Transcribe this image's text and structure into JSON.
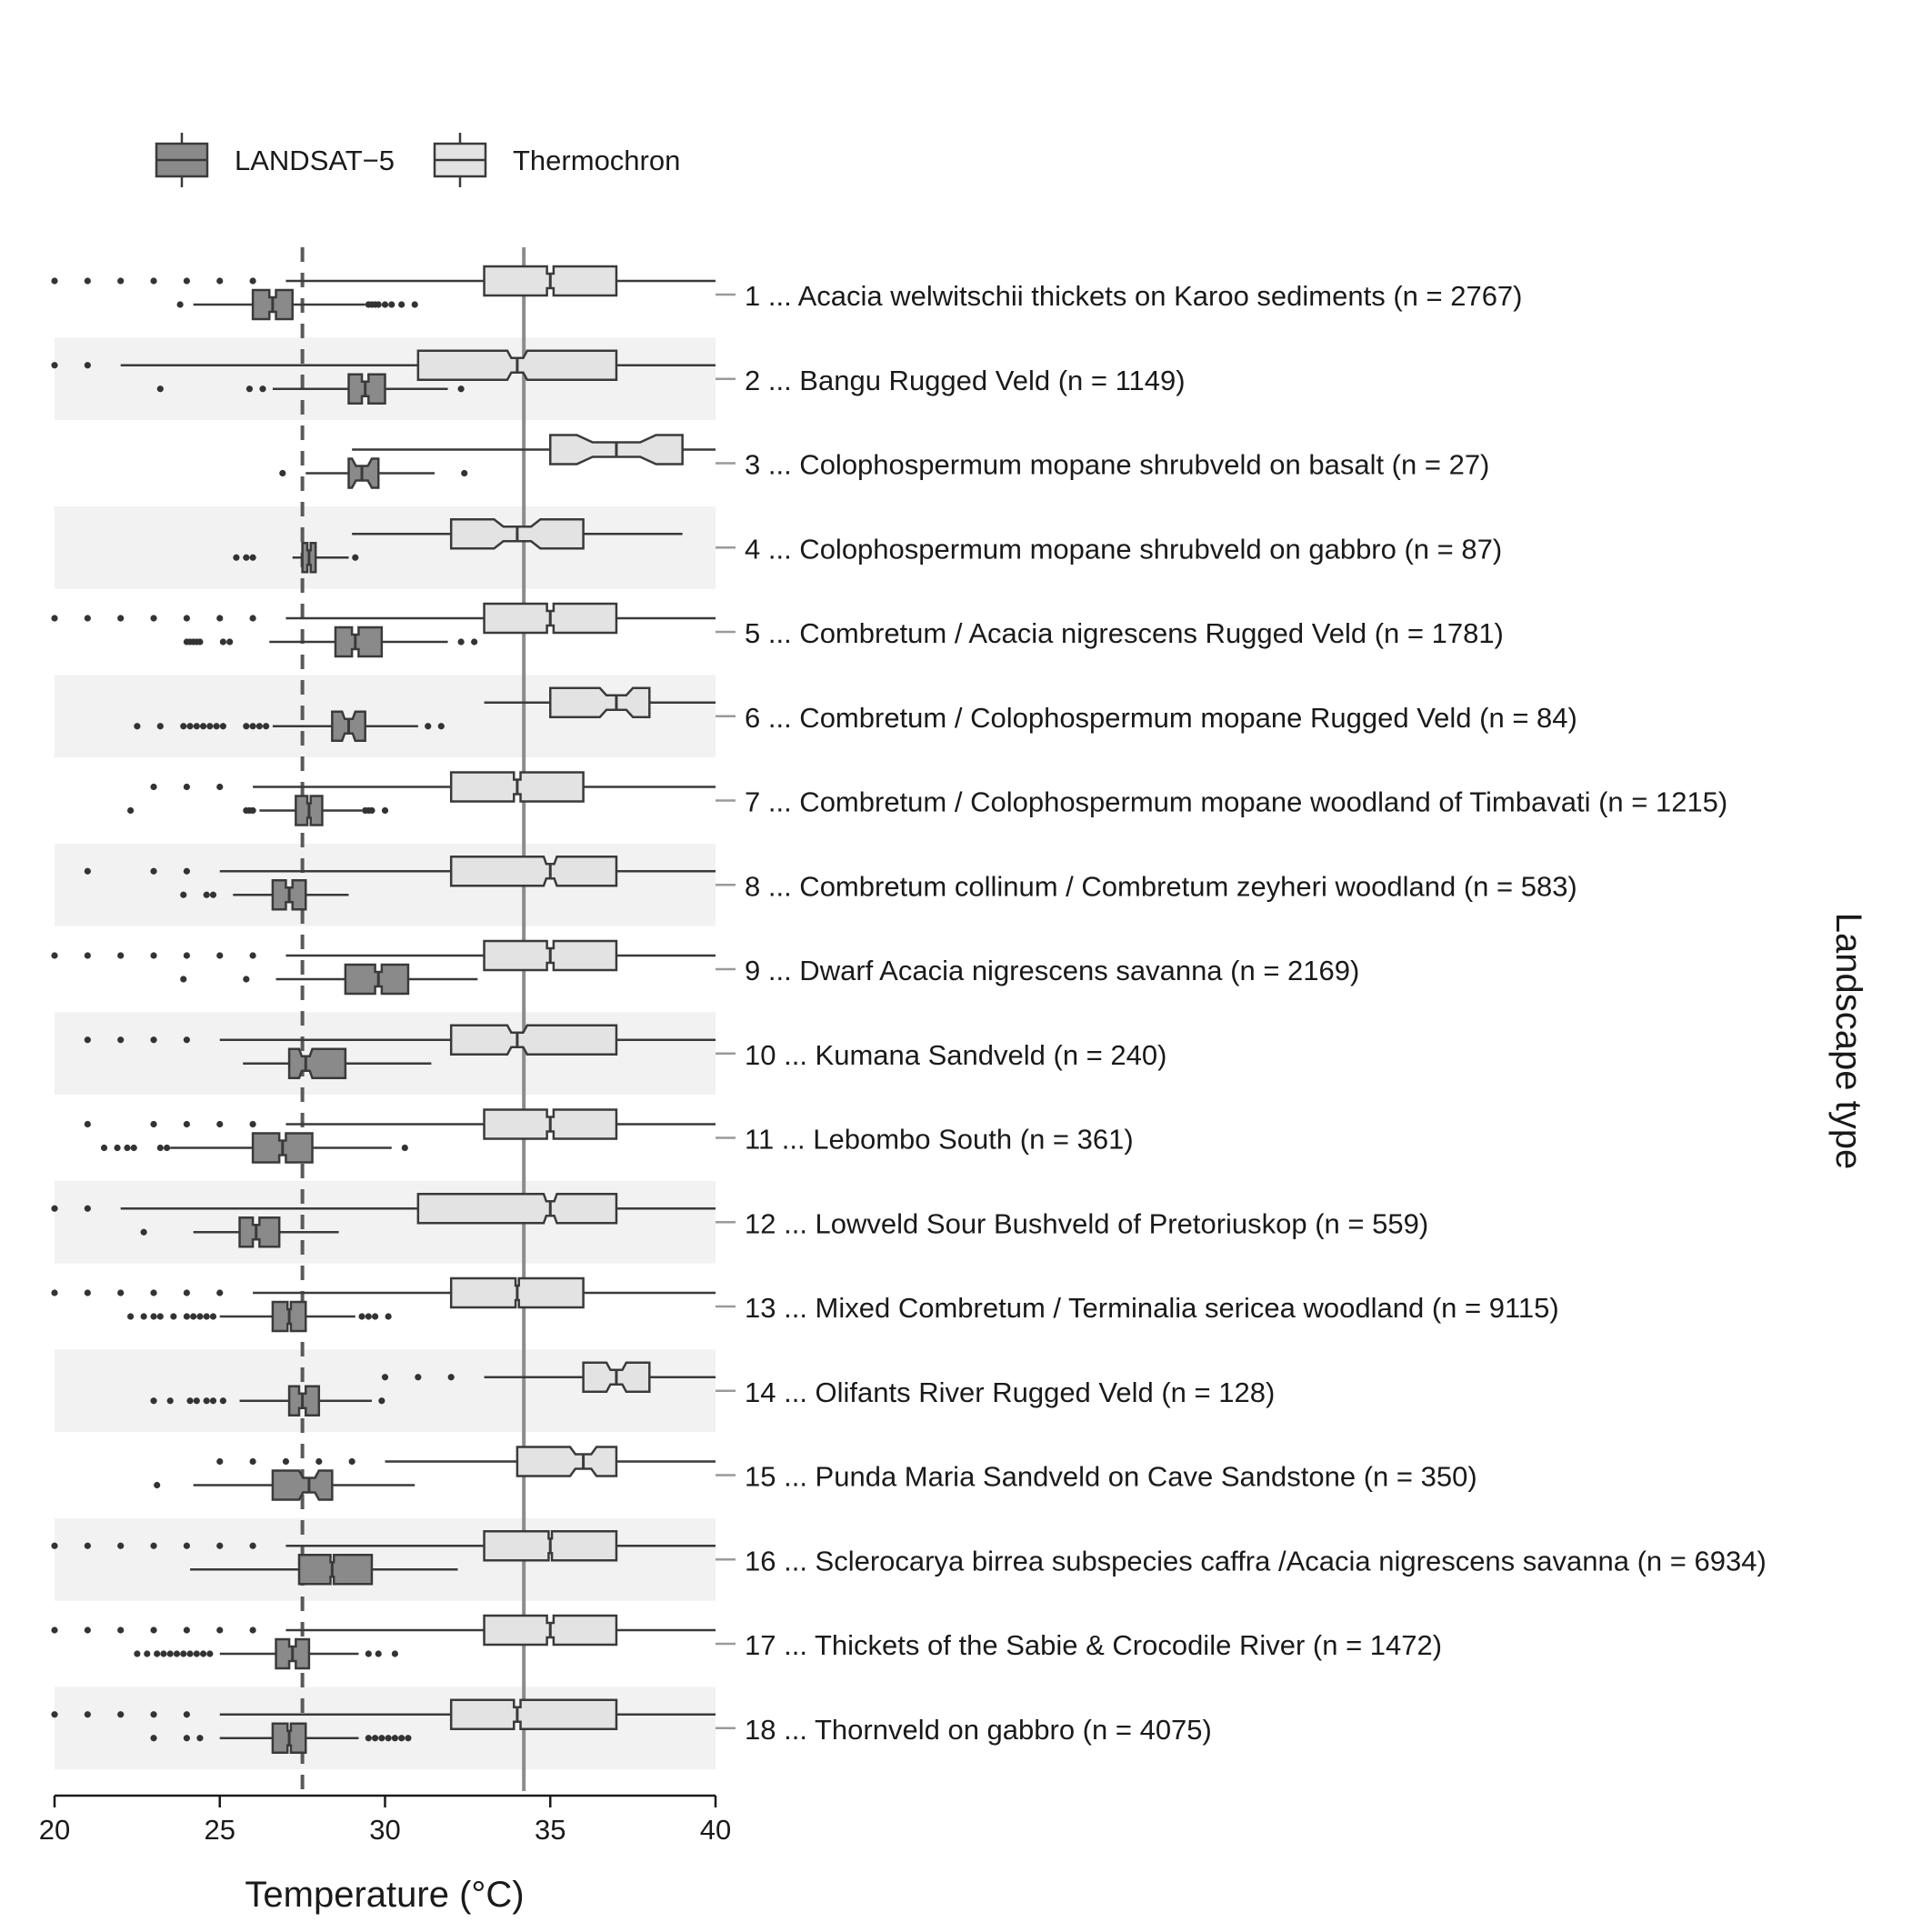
{
  "chart_data": {
    "type": "boxplot",
    "orientation": "horizontal",
    "xlabel": "Temperature (°C)",
    "ylabel": "Landscape type",
    "xlim": [
      20,
      40
    ],
    "xticks": [
      20,
      25,
      30,
      35,
      40
    ],
    "legend": {
      "position": "top-left",
      "entries": [
        {
          "name": "LANDSAT−5",
          "color": "#8a8a8a"
        },
        {
          "name": "Thermochron",
          "color": "#e3e3e3"
        }
      ]
    },
    "reference_lines": [
      {
        "value": 27.5,
        "style": "dashed",
        "color": "#5a5a5a"
      },
      {
        "value": 34.2,
        "style": "solid",
        "color": "#8c8c8c"
      }
    ],
    "colors": {
      "landsat": "#8a8a8a",
      "thermochron": "#e3e3e3",
      "band": "#f2f2f2",
      "stroke": "#3a3a3a"
    },
    "series": [
      {
        "name": "LANDSAT−5",
        "key": "landsat"
      },
      {
        "name": "Thermochron",
        "key": "thermochron"
      }
    ],
    "categories": [
      {
        "label": "1 ... Acacia welwitschii thickets on Karoo sediments (n = 2767)",
        "thermochron": {
          "whislo": 27,
          "q1": 33,
          "med": 35,
          "q3": 37,
          "whishi": 40,
          "notch": [
            34.9,
            35.1
          ],
          "fliers": [
            20,
            21,
            22,
            23,
            24,
            25,
            26
          ]
        },
        "landsat": {
          "whislo": 24.2,
          "q1": 26,
          "med": 26.6,
          "q3": 27.2,
          "whishi": 29.4,
          "notch": [
            26.5,
            26.7
          ],
          "fliers": [
            23.8,
            29.5,
            29.6,
            29.7,
            29.8,
            30,
            30.2,
            30.5,
            30.9
          ]
        }
      },
      {
        "label": "2 ... Bangu Rugged Veld (n = 1149)",
        "thermochron": {
          "whislo": 22,
          "q1": 31,
          "med": 34,
          "q3": 37,
          "whishi": 40,
          "notch": [
            33.7,
            34.3
          ],
          "fliers": [
            20,
            21
          ]
        },
        "landsat": {
          "whislo": 26.6,
          "q1": 28.9,
          "med": 29.4,
          "q3": 30,
          "whishi": 31.9,
          "notch": [
            29.3,
            29.5
          ],
          "fliers": [
            23.2,
            25.9,
            26.3,
            32.3
          ]
        }
      },
      {
        "label": "3 ... Colophospermum mopane shrubveld on basalt (n = 27)",
        "thermochron": {
          "whislo": 29,
          "q1": 35,
          "med": 37,
          "q3": 39,
          "whishi": 40,
          "notch": [
            35.8,
            38.2
          ],
          "fliers": []
        },
        "landsat": {
          "whislo": 27.6,
          "q1": 28.9,
          "med": 29.3,
          "q3": 29.8,
          "whishi": 31.5,
          "notch": [
            29.0,
            29.6
          ],
          "fliers": [
            26.9,
            32.4
          ]
        }
      },
      {
        "label": "4 ... Colophospermum mopane shrubveld on gabbro (n = 87)",
        "thermochron": {
          "whislo": 29,
          "q1": 32,
          "med": 34,
          "q3": 36,
          "whishi": 39,
          "notch": [
            33.3,
            34.7
          ],
          "fliers": []
        },
        "landsat": {
          "whislo": 27.2,
          "q1": 27.5,
          "med": 27.7,
          "q3": 27.9,
          "whishi": 28.9,
          "notch": [
            27.65,
            27.75
          ],
          "fliers": [
            25.5,
            25.8,
            26.0,
            29.1
          ]
        }
      },
      {
        "label": "5 ... Combretum / Acacia nigrescens Rugged Veld (n = 1781)",
        "thermochron": {
          "whislo": 27,
          "q1": 33,
          "med": 35,
          "q3": 37,
          "whishi": 40,
          "notch": [
            34.9,
            35.1
          ],
          "fliers": [
            20,
            21,
            22,
            23,
            24,
            25,
            26
          ]
        },
        "landsat": {
          "whislo": 26.5,
          "q1": 28.5,
          "med": 29.1,
          "q3": 29.9,
          "whishi": 31.9,
          "notch": [
            29.0,
            29.2
          ],
          "fliers": [
            24,
            24.1,
            24.2,
            24.3,
            24.4,
            25.1,
            25.3,
            32.3,
            32.7
          ]
        }
      },
      {
        "label": "6 ... Combretum / Colophospermum mopane Rugged Veld (n = 84)",
        "thermochron": {
          "whislo": 33,
          "q1": 35,
          "med": 37,
          "q3": 38,
          "whishi": 40,
          "notch": [
            36.5,
            37.5
          ],
          "fliers": []
        },
        "landsat": {
          "whislo": 26.6,
          "q1": 28.4,
          "med": 28.9,
          "q3": 29.4,
          "whishi": 31,
          "notch": [
            28.7,
            29.1
          ],
          "fliers": [
            22.5,
            23.2,
            23.9,
            24.1,
            24.3,
            24.5,
            24.7,
            24.9,
            25.1,
            25.8,
            26.0,
            26.2,
            26.4,
            31.3,
            31.7
          ]
        }
      },
      {
        "label": "7 ... Combretum / Colophospermum mopane woodland of Timbavati (n = 1215)",
        "thermochron": {
          "whislo": 26,
          "q1": 32,
          "med": 34,
          "q3": 36,
          "whishi": 40,
          "notch": [
            33.9,
            34.1
          ],
          "fliers": [
            23,
            24,
            25
          ]
        },
        "landsat": {
          "whislo": 26.2,
          "q1": 27.3,
          "med": 27.7,
          "q3": 28.1,
          "whishi": 29.3,
          "notch": [
            27.65,
            27.75
          ],
          "fliers": [
            22.3,
            25.8,
            25.9,
            26.0,
            29.4,
            29.5,
            29.6,
            30.0
          ]
        }
      },
      {
        "label": "8 ... Combretum collinum / Combretum zeyheri woodland (n = 583)",
        "thermochron": {
          "whislo": 25,
          "q1": 32,
          "med": 35,
          "q3": 37,
          "whishi": 40,
          "notch": [
            34.8,
            35.2
          ],
          "fliers": [
            21,
            23,
            24
          ]
        },
        "landsat": {
          "whislo": 25.4,
          "q1": 26.6,
          "med": 27.1,
          "q3": 27.6,
          "whishi": 28.9,
          "notch": [
            27.0,
            27.2
          ],
          "fliers": [
            23.9,
            24.6,
            24.8
          ]
        }
      },
      {
        "label": "9 ... Dwarf Acacia nigrescens savanna (n = 2169)",
        "thermochron": {
          "whislo": 27,
          "q1": 33,
          "med": 35,
          "q3": 37,
          "whishi": 40,
          "notch": [
            34.9,
            35.1
          ],
          "fliers": [
            20,
            21,
            22,
            23,
            24,
            25,
            26
          ]
        },
        "landsat": {
          "whislo": 26.7,
          "q1": 28.8,
          "med": 29.8,
          "q3": 30.7,
          "whishi": 32.8,
          "notch": [
            29.7,
            29.9
          ],
          "fliers": [
            23.9,
            25.8
          ]
        }
      },
      {
        "label": "10 ... Kumana Sandveld (n = 240)",
        "thermochron": {
          "whislo": 25,
          "q1": 32,
          "med": 34,
          "q3": 37,
          "whishi": 40,
          "notch": [
            33.7,
            34.3
          ],
          "fliers": [
            21,
            22,
            23,
            24
          ]
        },
        "landsat": {
          "whislo": 25.7,
          "q1": 27.1,
          "med": 27.6,
          "q3": 28.8,
          "whishi": 31.4,
          "notch": [
            27.4,
            27.8
          ],
          "fliers": []
        }
      },
      {
        "label": "11 ... Lebombo South (n = 361)",
        "thermochron": {
          "whislo": 27,
          "q1": 33,
          "med": 35,
          "q3": 37,
          "whishi": 40,
          "notch": [
            34.9,
            35.1
          ],
          "fliers": [
            21,
            23,
            24,
            25,
            26
          ]
        },
        "landsat": {
          "whislo": 23.5,
          "q1": 26,
          "med": 26.9,
          "q3": 27.8,
          "whishi": 30.2,
          "notch": [
            26.8,
            27.0
          ],
          "fliers": [
            21.5,
            21.9,
            22.2,
            22.4,
            23.2,
            23.4,
            30.6
          ]
        }
      },
      {
        "label": "12 ... Lowveld Sour Bushveld of Pretoriuskop (n = 559)",
        "thermochron": {
          "whislo": 22,
          "q1": 31,
          "med": 35,
          "q3": 37,
          "whishi": 40,
          "notch": [
            34.8,
            35.2
          ],
          "fliers": [
            20,
            21
          ]
        },
        "landsat": {
          "whislo": 24.2,
          "q1": 25.6,
          "med": 26.1,
          "q3": 26.8,
          "whishi": 28.6,
          "notch": [
            26.0,
            26.2
          ],
          "fliers": [
            22.7
          ]
        }
      },
      {
        "label": "13 ... Mixed Combretum / Terminalia sericea woodland (n = 9115)",
        "thermochron": {
          "whislo": 26,
          "q1": 32,
          "med": 34,
          "q3": 36,
          "whishi": 40,
          "notch": [
            33.95,
            34.05
          ],
          "fliers": [
            20,
            21,
            22,
            23,
            24,
            25
          ]
        },
        "landsat": {
          "whislo": 25,
          "q1": 26.6,
          "med": 27.1,
          "q3": 27.6,
          "whishi": 29.1,
          "notch": [
            27.05,
            27.15
          ],
          "fliers": [
            22.3,
            22.7,
            23,
            23.2,
            23.6,
            24.0,
            24.2,
            24.4,
            24.6,
            24.8,
            29.3,
            29.5,
            29.7,
            30.1
          ]
        }
      },
      {
        "label": "14 ... Olifants River Rugged Veld (n = 128)",
        "thermochron": {
          "whislo": 33,
          "q1": 36,
          "med": 37,
          "q3": 38,
          "whishi": 40,
          "notch": [
            36.7,
            37.3
          ],
          "fliers": [
            30,
            31,
            32
          ]
        },
        "landsat": {
          "whislo": 25.6,
          "q1": 27.1,
          "med": 27.5,
          "q3": 28,
          "whishi": 29.6,
          "notch": [
            27.4,
            27.6
          ],
          "fliers": [
            23,
            23.5,
            24.1,
            24.3,
            24.6,
            24.8,
            25.1,
            29.9
          ]
        }
      },
      {
        "label": "15 ... Punda Maria Sandveld on Cave Sandstone (n = 350)",
        "thermochron": {
          "whislo": 30,
          "q1": 34,
          "med": 36,
          "q3": 37,
          "whishi": 40,
          "notch": [
            35.6,
            36.4
          ],
          "fliers": [
            25,
            26,
            27,
            28,
            29
          ]
        },
        "landsat": {
          "whislo": 24.2,
          "q1": 26.6,
          "med": 27.7,
          "q3": 28.4,
          "whishi": 30.9,
          "notch": [
            27.4,
            28.0
          ],
          "fliers": [
            23.1
          ]
        }
      },
      {
        "label": "16 ... Sclerocarya birrea subspecies caffra /Acacia nigrescens savanna (n = 6934)",
        "thermochron": {
          "whislo": 27,
          "q1": 33,
          "med": 35,
          "q3": 37,
          "whishi": 40,
          "notch": [
            34.95,
            35.05
          ],
          "fliers": [
            20,
            21,
            22,
            23,
            24,
            25,
            26
          ]
        },
        "landsat": {
          "whislo": 24.1,
          "q1": 27.4,
          "med": 28.4,
          "q3": 29.6,
          "whishi": 32.2,
          "notch": [
            28.35,
            28.45
          ],
          "fliers": []
        }
      },
      {
        "label": "17 ... Thickets of the Sabie & Crocodile River (n = 1472)",
        "thermochron": {
          "whislo": 27,
          "q1": 33,
          "med": 35,
          "q3": 37,
          "whishi": 40,
          "notch": [
            34.9,
            35.1
          ],
          "fliers": [
            20,
            21,
            22,
            23,
            24,
            25,
            26
          ]
        },
        "landsat": {
          "whislo": 25,
          "q1": 26.7,
          "med": 27.2,
          "q3": 27.7,
          "whishi": 29.2,
          "notch": [
            27.1,
            27.3
          ],
          "fliers": [
            22.5,
            22.8,
            23.1,
            23.3,
            23.5,
            23.7,
            23.9,
            24.1,
            24.3,
            24.5,
            24.7,
            29.5,
            29.8,
            30.3
          ]
        }
      },
      {
        "label": "18 ... Thornveld on gabbro (n = 4075)",
        "thermochron": {
          "whislo": 25,
          "q1": 32,
          "med": 34,
          "q3": 37,
          "whishi": 40,
          "notch": [
            33.9,
            34.1
          ],
          "fliers": [
            20,
            21,
            22,
            23,
            24
          ]
        },
        "landsat": {
          "whislo": 25,
          "q1": 26.6,
          "med": 27.1,
          "q3": 27.6,
          "whishi": 29.2,
          "notch": [
            27.05,
            27.15
          ],
          "fliers": [
            23,
            24,
            24.4,
            29.5,
            29.7,
            29.9,
            30.1,
            30.3,
            30.5,
            30.7
          ]
        }
      }
    ]
  }
}
